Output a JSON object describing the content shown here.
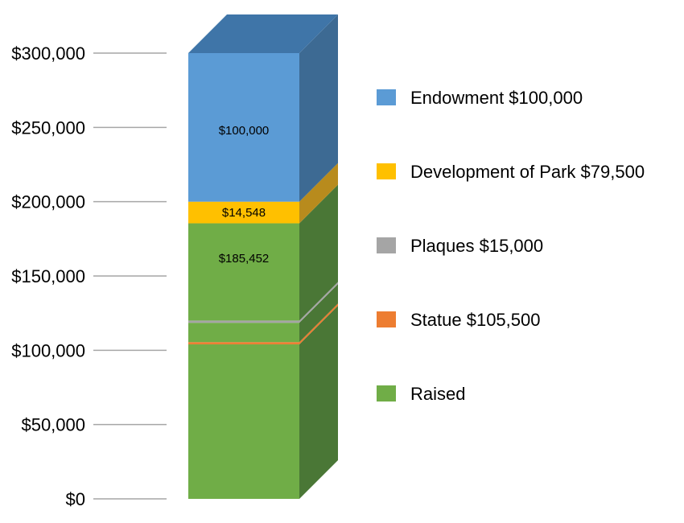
{
  "chart_data": {
    "type": "bar",
    "subtype": "stacked-3d",
    "title": "",
    "xlabel": "",
    "ylabel": "",
    "ylim": [
      0,
      300000
    ],
    "y_ticks": [
      0,
      50000,
      100000,
      150000,
      200000,
      250000,
      300000
    ],
    "y_tick_labels": [
      "$0",
      "$50,000",
      "$100,000",
      "$150,000",
      "$200,000",
      "$250,000",
      "$300,000"
    ],
    "grid": false,
    "legend_position": "right",
    "stack": [
      {
        "key": "raised",
        "from": 0,
        "to": 104000,
        "color": "#70ad47",
        "side_color": "#4a7736",
        "label": ""
      },
      {
        "key": "statue",
        "from": 104000,
        "to": 105500,
        "color": "#ed7d31",
        "side_color": "#ed7d31",
        "label": ""
      },
      {
        "key": "raised2",
        "from": 105500,
        "to": 118500,
        "color": "#70ad47",
        "side_color": "#4a7736",
        "label": ""
      },
      {
        "key": "plaques",
        "from": 118500,
        "to": 120000,
        "color": "#a5a5a5",
        "side_color": "#a5a5a5",
        "label": ""
      },
      {
        "key": "raised3",
        "from": 120000,
        "to": 185452,
        "color": "#70ad47",
        "side_color": "#4a7736",
        "label": "$185,452",
        "label_value": 162000
      },
      {
        "key": "development",
        "from": 185452,
        "to": 200000,
        "color": "#ffc000",
        "side_color": "#b88b1d",
        "label": "$14,548",
        "label_value": 192700
      },
      {
        "key": "endowment",
        "from": 200000,
        "to": 300000,
        "color": "#5b9bd5",
        "side_color": "#3d6a93",
        "label": "$100,000",
        "label_value": 248000
      }
    ],
    "legend": [
      {
        "name": "Endowment $100,000",
        "color": "#5b9bd5"
      },
      {
        "name": "Development of Park $79,500",
        "color": "#ffc000"
      },
      {
        "name": "Plaques $15,000",
        "color": "#a5a5a5"
      },
      {
        "name": "Statue $105,500",
        "color": "#ed7d31"
      },
      {
        "name": "Raised",
        "color": "#70ad47"
      }
    ],
    "top_color": "#3f75a8",
    "axis_line_color": "#a6a6a6"
  }
}
